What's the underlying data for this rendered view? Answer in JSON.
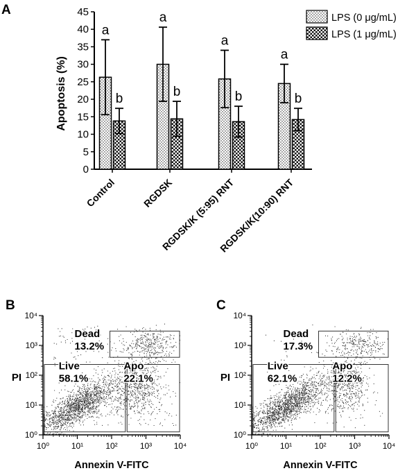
{
  "panels": {
    "A": {
      "label": "A"
    },
    "B": {
      "label": "B"
    },
    "C": {
      "label": "C"
    }
  },
  "chart_data": [
    {
      "type": "bar",
      "panel": "A",
      "title": "",
      "xlabel": "",
      "ylabel": "Apoptosis (%)",
      "ylim": [
        0,
        45
      ],
      "yticks": [
        "0",
        "5",
        "10",
        "15",
        "20",
        "25",
        "30",
        "35",
        "40",
        "45"
      ],
      "categories": [
        "Control",
        "RGDSK",
        "RGDSK/K (5:95) RNT",
        "RGDSK/K(10:90) RNT"
      ],
      "series": [
        {
          "name": "LPS (0 μg/mL)",
          "pattern": "dots",
          "values": [
            26.3,
            30.0,
            25.8,
            24.5
          ],
          "errors": [
            10.7,
            10.6,
            8.2,
            5.5
          ],
          "letters": [
            "a",
            "a",
            "a",
            "a"
          ]
        },
        {
          "name": "LPS (1 μg/mL)",
          "pattern": "checker",
          "values": [
            13.8,
            14.4,
            13.6,
            14.2
          ],
          "errors": [
            3.6,
            5.0,
            4.4,
            3.2
          ],
          "letters": [
            "b",
            "b",
            "b",
            "b"
          ]
        }
      ],
      "legend_position": "top-right",
      "grid": false
    },
    {
      "type": "scatter",
      "panel": "B",
      "xlabel": "Annexin V-FITC",
      "ylabel": "PI",
      "xscale": "log",
      "yscale": "log",
      "xlim": [
        1,
        10000
      ],
      "ylim": [
        1,
        10000
      ],
      "xticks": [
        "10⁰",
        "10¹",
        "10²",
        "10³",
        "10⁴"
      ],
      "yticks": [
        "10⁰",
        "10¹",
        "10²",
        "10³",
        "10⁴"
      ],
      "gates": [
        {
          "name": "Dead",
          "percent": "13.2%"
        },
        {
          "name": "Live",
          "percent": "58.1%"
        },
        {
          "name": "Apo",
          "percent": "22.1%"
        }
      ]
    },
    {
      "type": "scatter",
      "panel": "C",
      "xlabel": "Annexin V-FITC",
      "ylabel": "PI",
      "xscale": "log",
      "yscale": "log",
      "xlim": [
        1,
        10000
      ],
      "ylim": [
        1,
        10000
      ],
      "xticks": [
        "10⁰",
        "10¹",
        "10²",
        "10³",
        "10⁴"
      ],
      "yticks": [
        "10⁰",
        "10¹",
        "10²",
        "10³",
        "10⁴"
      ],
      "gates": [
        {
          "name": "Dead",
          "percent": "17.3%"
        },
        {
          "name": "Live",
          "percent": "62.1%"
        },
        {
          "name": "Apo",
          "percent": "12.2%"
        }
      ]
    }
  ]
}
